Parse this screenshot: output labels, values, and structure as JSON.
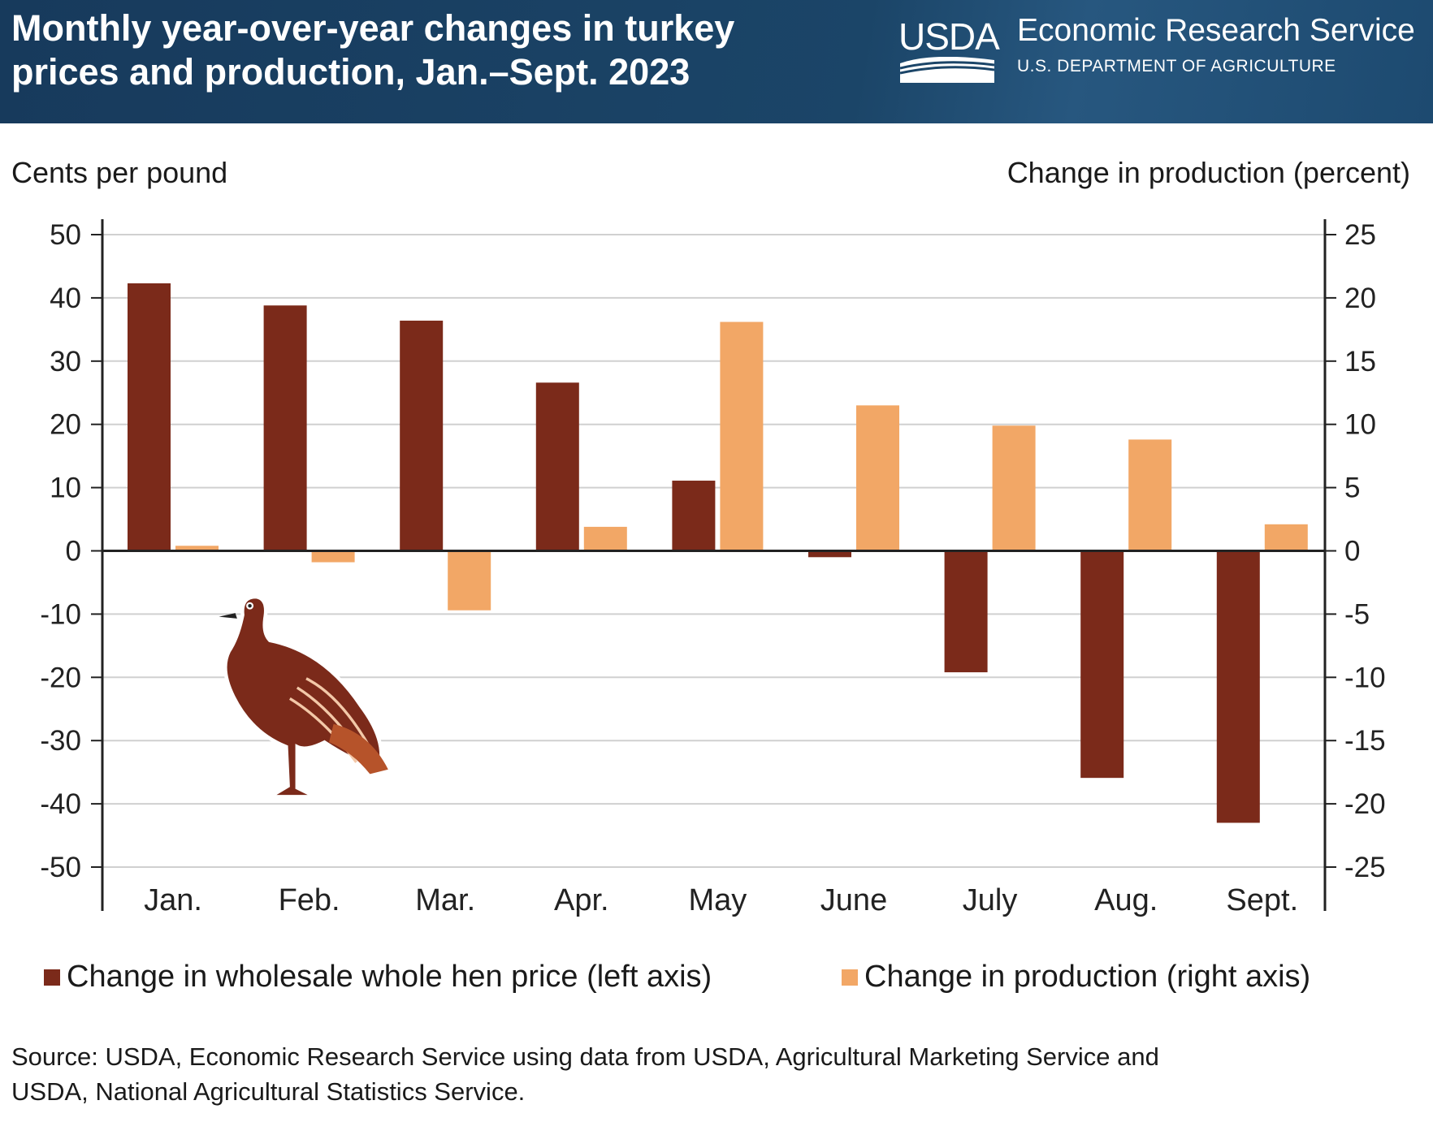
{
  "header": {
    "title_line1": "Monthly year-over-year changes in turkey",
    "title_line2": "prices and production, Jan.–Sept. 2023",
    "logo_text": "USDA",
    "org": "Economic Research Service",
    "dept": "U.S. DEPARTMENT OF AGRICULTURE"
  },
  "chart_data": {
    "type": "bar",
    "title": "Monthly year-over-year changes in turkey prices and production, Jan.–Sept. 2023",
    "ylabel": "Cents per pound",
    "ylabel_right": "Change in production (percent)",
    "ylim": [
      -50,
      50
    ],
    "ylim_right": [
      -25,
      25
    ],
    "yticks": [
      "50",
      "40",
      "30",
      "20",
      "10",
      "0",
      "-10",
      "-20",
      "-30",
      "-40",
      "-50"
    ],
    "yticks_right": [
      "25",
      "20",
      "15",
      "10",
      "5",
      "0",
      "-5",
      "-10",
      "-15",
      "-20",
      "-25"
    ],
    "categories": [
      "Jan.",
      "Feb.",
      "Mar.",
      "Apr.",
      "May",
      "June",
      "July",
      "Aug.",
      "Sept."
    ],
    "series": [
      {
        "name": "Change in wholesale whole hen price (left axis)",
        "axis": "left",
        "color": "#7b2a1a",
        "values": [
          42.3,
          38.8,
          36.4,
          26.6,
          11.1,
          -1.0,
          -19.2,
          -35.9,
          -43.0
        ]
      },
      {
        "name": "Change in production (right axis)",
        "axis": "right",
        "color": "#f2a766",
        "values": [
          0.4,
          -0.9,
          -4.7,
          1.9,
          18.1,
          11.5,
          9.9,
          8.8,
          2.1
        ]
      }
    ],
    "grid": true,
    "legend": "bottom"
  },
  "source": {
    "line1": "Source: USDA, Economic Research Service using data from USDA, Agricultural Marketing Service and",
    "line2": "USDA, National Agricultural Statistics Service."
  }
}
